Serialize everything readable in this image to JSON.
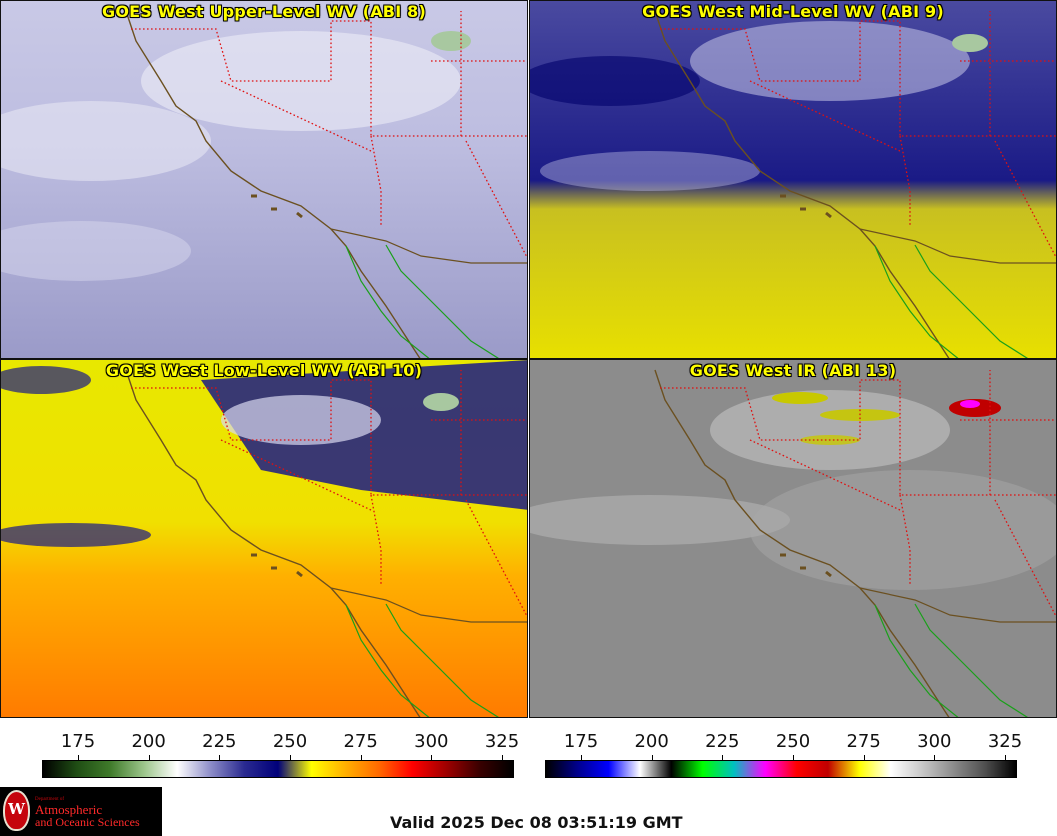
{
  "panels": [
    {
      "title": "GOES West Upper-Level WV (ABI 8)",
      "theme": "upper"
    },
    {
      "title": "GOES West Mid-Level WV (ABI 9)",
      "theme": "mid"
    },
    {
      "title": "GOES West Low-Level WV (ABI 10)",
      "theme": "low"
    },
    {
      "title": "GOES West IR (ABI 13)",
      "theme": "ir"
    }
  ],
  "colorbars": [
    {
      "name": "wv",
      "ticks": [
        "175",
        "200",
        "225",
        "250",
        "275",
        "300",
        "325"
      ],
      "colors": [
        "#000000",
        "#1f4d14",
        "#3f7a2a",
        "#9bc58a",
        "#ffffff",
        "#8c8cc8",
        "#2a2a90",
        "#00007a",
        "#ffff00",
        "#ffb000",
        "#ff6a00",
        "#ff0000",
        "#a00000",
        "#3a0000",
        "#000000"
      ]
    },
    {
      "name": "ir",
      "ticks": [
        "175",
        "200",
        "225",
        "250",
        "275",
        "300",
        "325"
      ],
      "colors": [
        "#000000",
        "#00008c",
        "#0000ff",
        "#ffffff",
        "#000000",
        "#00ff00",
        "#00c0c0",
        "#ff00ff",
        "#ff0000",
        "#c00000",
        "#ffff00",
        "#ffffff",
        "#c8c8c8",
        "#8c8c8c",
        "#505050",
        "#000000"
      ]
    }
  ],
  "logo": {
    "department": "Department of",
    "line1": "Atmospheric",
    "line2": "and Oceanic Sciences",
    "seal_letter": "W"
  },
  "valid_text": "Valid 2025 Dec 08 03:51:19 GMT"
}
